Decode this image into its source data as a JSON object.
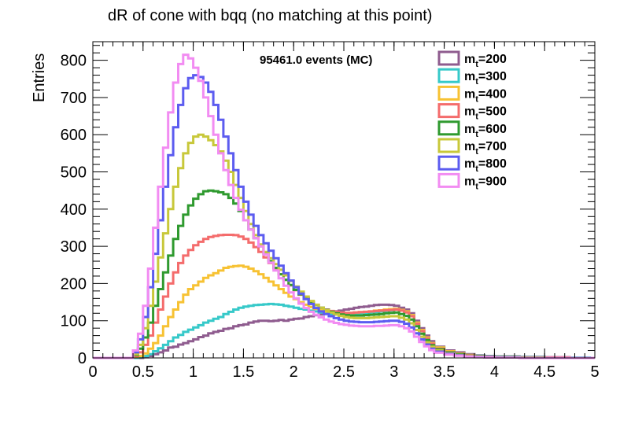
{
  "chart_data": {
    "type": "line",
    "title": "dR of cone with bqq (no matching at this point)",
    "ylabel": "Entries",
    "xlabel": "",
    "annotation": "95461.0 events (MC)",
    "xlim": [
      0,
      5
    ],
    "ylim": [
      0,
      850
    ],
    "x_ticks": [
      0,
      0.5,
      1,
      1.5,
      2,
      2.5,
      3,
      3.5,
      4,
      4.5,
      5
    ],
    "x_tick_labels": [
      "0",
      "0.5",
      "1",
      "1.5",
      "2",
      "2.5",
      "3",
      "3.5",
      "4",
      "4.5",
      "5"
    ],
    "y_ticks": [
      0,
      100,
      200,
      300,
      400,
      500,
      600,
      700,
      800
    ],
    "y_tick_labels": [
      "0",
      "100",
      "200",
      "300",
      "400",
      "500",
      "600",
      "700",
      "800"
    ],
    "grid": false,
    "legend_position": "top-right",
    "x": [
      0.0,
      0.25,
      0.3,
      0.35,
      0.4,
      0.45,
      0.5,
      0.55,
      0.6,
      0.65,
      0.7,
      0.75,
      0.8,
      0.85,
      0.9,
      0.95,
      1.0,
      1.05,
      1.1,
      1.15,
      1.2,
      1.25,
      1.3,
      1.35,
      1.4,
      1.45,
      1.5,
      1.55,
      1.6,
      1.65,
      1.7,
      1.75,
      1.8,
      1.85,
      1.9,
      1.95,
      2.0,
      2.05,
      2.1,
      2.15,
      2.2,
      2.25,
      2.3,
      2.35,
      2.4,
      2.45,
      2.5,
      2.55,
      2.6,
      2.65,
      2.7,
      2.75,
      2.8,
      2.85,
      2.9,
      2.95,
      3.0,
      3.05,
      3.1,
      3.15,
      3.2,
      3.25,
      3.3,
      3.35,
      3.4,
      3.5,
      3.6,
      3.7,
      3.8,
      3.9,
      4.0,
      4.25,
      4.5,
      4.75,
      4.95
    ],
    "series": [
      {
        "name": "m_t=200",
        "color": "#8f5c8f",
        "values": [
          0,
          0,
          0,
          0,
          0,
          0,
          2,
          5,
          10,
          15,
          20,
          28,
          30,
          36,
          40,
          45,
          50,
          56,
          60,
          66,
          70,
          73,
          78,
          80,
          85,
          88,
          90,
          95,
          98,
          100,
          100,
          99,
          100,
          102,
          100,
          103,
          105,
          106,
          110,
          112,
          115,
          117,
          120,
          122,
          125,
          127,
          130,
          132,
          135,
          137,
          138,
          140,
          142,
          143,
          143,
          142,
          140,
          135,
          130,
          120,
          100,
          80,
          60,
          45,
          30,
          20,
          15,
          10,
          7,
          5,
          4,
          3,
          2,
          1,
          0
        ]
      },
      {
        "name": "m_t=300",
        "color": "#36c9c9",
        "values": [
          0,
          0,
          0,
          0,
          0,
          2,
          5,
          10,
          18,
          26,
          35,
          45,
          55,
          62,
          70,
          76,
          82,
          88,
          95,
          100,
          105,
          110,
          118,
          124,
          130,
          135,
          138,
          140,
          142,
          143,
          144,
          145,
          144,
          143,
          140,
          138,
          135,
          132,
          130,
          127,
          125,
          122,
          120,
          118,
          117,
          116,
          115,
          116,
          117,
          118,
          120,
          122,
          123,
          125,
          126,
          128,
          130,
          128,
          125,
          115,
          95,
          75,
          55,
          40,
          28,
          18,
          12,
          8,
          6,
          4,
          3,
          2,
          1,
          1,
          0
        ]
      },
      {
        "name": "m_t=400",
        "color": "#f7c233",
        "values": [
          0,
          0,
          0,
          0,
          2,
          5,
          12,
          25,
          40,
          60,
          85,
          110,
          130,
          150,
          170,
          185,
          195,
          205,
          215,
          222,
          228,
          235,
          242,
          245,
          247,
          248,
          245,
          240,
          233,
          225,
          215,
          205,
          195,
          185,
          175,
          165,
          158,
          150,
          143,
          137,
          132,
          128,
          125,
          123,
          121,
          120,
          120,
          121,
          122,
          123,
          124,
          125,
          127,
          128,
          130,
          131,
          132,
          129,
          125,
          115,
          95,
          75,
          55,
          40,
          28,
          18,
          12,
          8,
          5,
          3,
          2,
          1,
          1,
          0,
          0
        ]
      },
      {
        "name": "m_t=500",
        "color": "#f46c6c",
        "values": [
          0,
          0,
          0,
          0,
          5,
          15,
          35,
          60,
          95,
          130,
          165,
          200,
          230,
          255,
          275,
          290,
          303,
          312,
          320,
          325,
          328,
          330,
          331,
          331,
          330,
          326,
          320,
          310,
          298,
          285,
          270,
          255,
          240,
          225,
          210,
          195,
          182,
          170,
          160,
          150,
          142,
          135,
          130,
          126,
          124,
          122,
          121,
          121,
          122,
          123,
          124,
          125,
          126,
          127,
          128,
          129,
          130,
          127,
          122,
          112,
          92,
          72,
          52,
          38,
          25,
          16,
          11,
          7,
          4,
          3,
          2,
          1,
          1,
          0,
          0
        ]
      },
      {
        "name": "m_t=600",
        "color": "#2f9a2f",
        "values": [
          0,
          0,
          0,
          0,
          8,
          25,
          55,
          95,
          140,
          185,
          230,
          275,
          320,
          355,
          385,
          410,
          428,
          440,
          448,
          450,
          448,
          445,
          440,
          430,
          415,
          395,
          370,
          345,
          322,
          300,
          280,
          260,
          242,
          225,
          210,
          196,
          183,
          171,
          160,
          150,
          142,
          135,
          129,
          124,
          120,
          117,
          115,
          114,
          114,
          114,
          115,
          116,
          117,
          118,
          120,
          121,
          122,
          118,
          113,
          103,
          85,
          65,
          48,
          34,
          23,
          15,
          10,
          6,
          4,
          2,
          2,
          1,
          0,
          0,
          0
        ]
      },
      {
        "name": "m_t=700",
        "color": "#c8c83a",
        "values": [
          0,
          0,
          0,
          0,
          10,
          35,
          80,
          140,
          205,
          270,
          335,
          400,
          460,
          510,
          550,
          578,
          595,
          600,
          595,
          585,
          572,
          555,
          530,
          500,
          465,
          430,
          395,
          360,
          330,
          305,
          285,
          268,
          252,
          237,
          222,
          207,
          192,
          178,
          165,
          153,
          143,
          135,
          128,
          122,
          117,
          113,
          110,
          108,
          107,
          107,
          107,
          108,
          109,
          110,
          111,
          112,
          112,
          108,
          103,
          93,
          75,
          57,
          42,
          30,
          20,
          13,
          8,
          5,
          3,
          2,
          1,
          1,
          0,
          0,
          0
        ]
      },
      {
        "name": "m_t=800",
        "color": "#5c5cf0",
        "values": [
          0,
          0,
          0,
          0,
          15,
          50,
          110,
          190,
          280,
          370,
          460,
          545,
          620,
          680,
          725,
          752,
          760,
          755,
          740,
          715,
          680,
          640,
          595,
          550,
          505,
          460,
          420,
          385,
          355,
          330,
          308,
          288,
          268,
          248,
          228,
          208,
          190,
          173,
          158,
          145,
          134,
          125,
          118,
          112,
          107,
          103,
          100,
          98,
          97,
          96,
          96,
          96,
          97,
          98,
          99,
          100,
          100,
          97,
          92,
          82,
          66,
          50,
          36,
          25,
          17,
          11,
          7,
          4,
          3,
          2,
          1,
          0,
          0,
          0,
          0
        ]
      },
      {
        "name": "m_t=900",
        "color": "#f28cf2",
        "values": [
          0,
          0,
          0,
          0,
          20,
          65,
          140,
          240,
          350,
          460,
          565,
          660,
          740,
          790,
          815,
          805,
          780,
          745,
          700,
          650,
          600,
          550,
          505,
          465,
          430,
          398,
          370,
          345,
          322,
          300,
          278,
          256,
          235,
          214,
          194,
          176,
          160,
          146,
          134,
          124,
          116,
          109,
          103,
          98,
          94,
          91,
          89,
          87,
          86,
          85,
          85,
          85,
          86,
          86,
          87,
          88,
          88,
          85,
          80,
          71,
          57,
          43,
          31,
          21,
          14,
          9,
          6,
          4,
          2,
          1,
          1,
          0,
          0,
          0,
          0
        ]
      }
    ]
  },
  "legend": {
    "items": [
      {
        "prefix": "m",
        "subscript": "t",
        "suffix": "=200"
      },
      {
        "prefix": "m",
        "subscript": "t",
        "suffix": "=300"
      },
      {
        "prefix": "m",
        "subscript": "t",
        "suffix": "=400"
      },
      {
        "prefix": "m",
        "subscript": "t",
        "suffix": "=500"
      },
      {
        "prefix": "m",
        "subscript": "t",
        "suffix": "=600"
      },
      {
        "prefix": "m",
        "subscript": "t",
        "suffix": "=700"
      },
      {
        "prefix": "m",
        "subscript": "t",
        "suffix": "=800"
      },
      {
        "prefix": "m",
        "subscript": "t",
        "suffix": "=900"
      }
    ]
  }
}
